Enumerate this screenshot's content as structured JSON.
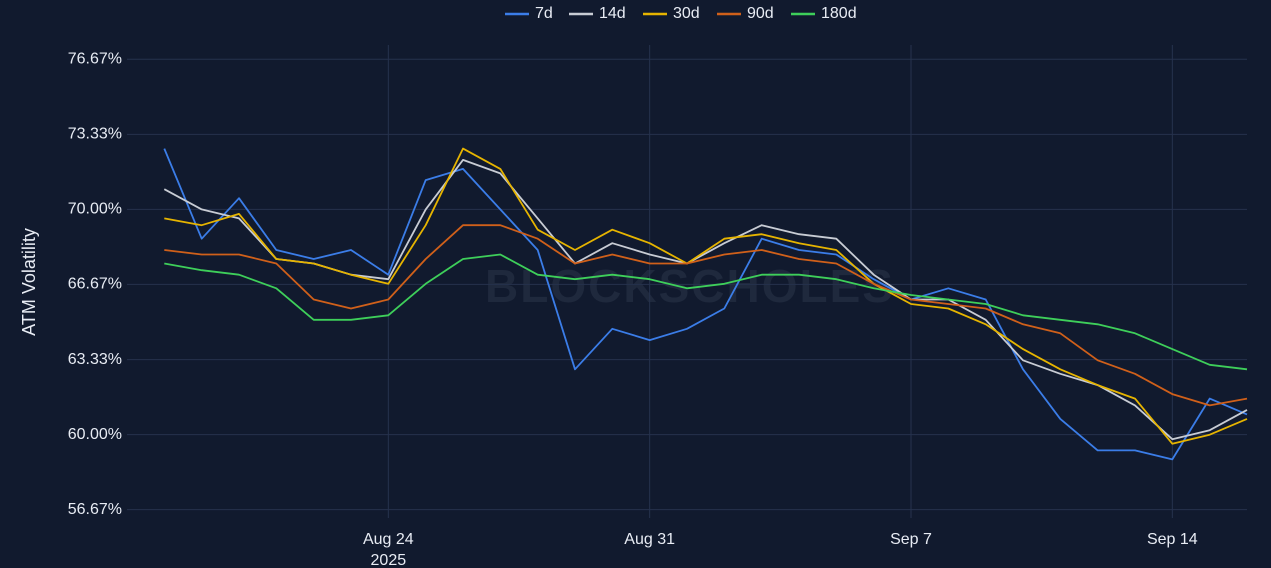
{
  "chart_data": {
    "type": "line",
    "y_label": "ATM Volatility",
    "watermark": "BLOCKSCHOLES",
    "x": [
      "2025-08-18",
      "2025-08-19",
      "2025-08-20",
      "2025-08-21",
      "2025-08-22",
      "2025-08-23",
      "2025-08-24",
      "2025-08-25",
      "2025-08-26",
      "2025-08-27",
      "2025-08-28",
      "2025-08-29",
      "2025-08-30",
      "2025-08-31",
      "2025-09-01",
      "2025-09-02",
      "2025-09-03",
      "2025-09-04",
      "2025-09-05",
      "2025-09-06",
      "2025-09-07",
      "2025-09-08",
      "2025-09-09",
      "2025-09-10",
      "2025-09-11",
      "2025-09-12",
      "2025-09-13",
      "2025-09-14",
      "2025-09-15",
      "2025-09-16"
    ],
    "xlim": [
      "2025-08-17",
      "2025-09-16"
    ],
    "xticks": [
      {
        "value": "2025-08-24",
        "label": "Aug 24",
        "sublabel": "2025"
      },
      {
        "value": "2025-08-31",
        "label": "Aug 31"
      },
      {
        "value": "2025-09-07",
        "label": "Sep 7"
      },
      {
        "value": "2025-09-14",
        "label": "Sep 14"
      }
    ],
    "ylim": [
      56.3,
      77.3
    ],
    "yticks": [
      {
        "value": 56.67,
        "label": "56.67%"
      },
      {
        "value": 60.0,
        "label": "60.00%"
      },
      {
        "value": 63.33,
        "label": "63.33%"
      },
      {
        "value": 66.67,
        "label": "66.67%"
      },
      {
        "value": 70.0,
        "label": "70.00%"
      },
      {
        "value": 73.33,
        "label": "73.33%"
      },
      {
        "value": 76.67,
        "label": "76.67%"
      }
    ],
    "grid": true,
    "legend": "top",
    "series": [
      {
        "name": "7d",
        "color": "#3b7de8",
        "values": [
          72.7,
          68.7,
          70.5,
          68.2,
          67.8,
          68.2,
          67.1,
          71.3,
          71.8,
          70.0,
          68.2,
          62.9,
          64.7,
          64.2,
          64.7,
          65.6,
          68.7,
          68.2,
          68.0,
          66.9,
          66.0,
          66.5,
          66.0,
          62.9,
          60.7,
          59.3,
          59.3,
          58.9,
          61.6,
          60.9
        ]
      },
      {
        "name": "14d",
        "color": "#c8ccd4",
        "values": [
          70.9,
          70.0,
          69.6,
          67.8,
          67.6,
          67.1,
          66.9,
          70.0,
          72.2,
          71.6,
          69.6,
          67.6,
          68.5,
          68.0,
          67.6,
          68.5,
          69.3,
          68.9,
          68.7,
          67.1,
          66.0,
          66.0,
          65.1,
          63.3,
          62.7,
          62.2,
          61.3,
          59.8,
          60.2,
          61.1
        ]
      },
      {
        "name": "30d",
        "color": "#e6b400",
        "values": [
          69.6,
          69.3,
          69.8,
          67.8,
          67.6,
          67.1,
          66.7,
          69.3,
          72.7,
          71.8,
          69.1,
          68.2,
          69.1,
          68.5,
          67.6,
          68.7,
          68.9,
          68.5,
          68.2,
          66.7,
          65.8,
          65.6,
          64.9,
          63.8,
          62.9,
          62.2,
          61.6,
          59.6,
          60.0,
          60.7
        ]
      },
      {
        "name": "90d",
        "color": "#d0601a",
        "values": [
          68.2,
          68.0,
          68.0,
          67.6,
          66.0,
          65.6,
          66.0,
          67.8,
          69.3,
          69.3,
          68.7,
          67.6,
          68.0,
          67.6,
          67.6,
          68.0,
          68.2,
          67.8,
          67.6,
          66.7,
          66.0,
          65.8,
          65.6,
          64.9,
          64.5,
          63.3,
          62.7,
          61.8,
          61.3,
          61.6
        ]
      },
      {
        "name": "180d",
        "color": "#3ecf5a",
        "values": [
          67.6,
          67.3,
          67.1,
          66.5,
          65.1,
          65.1,
          65.3,
          66.7,
          67.8,
          68.0,
          67.1,
          66.9,
          67.1,
          66.9,
          66.5,
          66.7,
          67.1,
          67.1,
          66.9,
          66.5,
          66.2,
          66.0,
          65.8,
          65.3,
          65.1,
          64.9,
          64.5,
          63.8,
          63.1,
          62.9
        ]
      }
    ]
  }
}
